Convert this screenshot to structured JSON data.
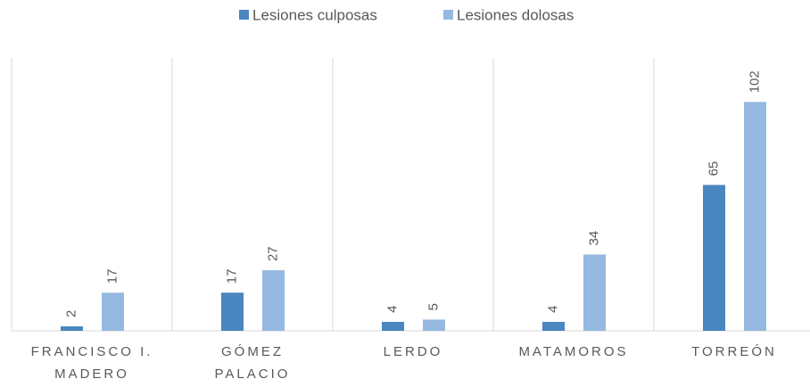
{
  "chart_data": {
    "type": "bar",
    "categories": [
      "FRANCISCO I. MADERO",
      "GÓMEZ PALACIO",
      "LERDO",
      "MATAMOROS",
      "TORREÓN"
    ],
    "series": [
      {
        "name": "Lesiones culposas",
        "color": "#4a86c0",
        "values": [
          2,
          17,
          4,
          4,
          65
        ]
      },
      {
        "name": "Lesiones dolosas",
        "color": "#95b9e0",
        "values": [
          17,
          27,
          5,
          34,
          102
        ]
      }
    ],
    "ylim": [
      0,
      120
    ],
    "legend": "top"
  }
}
